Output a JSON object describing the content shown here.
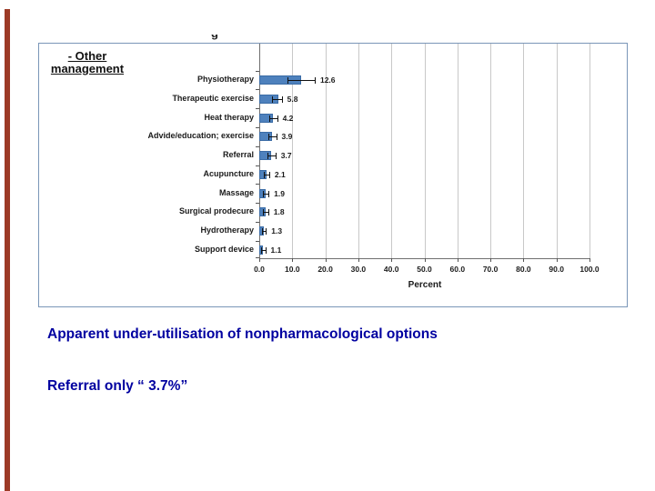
{
  "slide": {
    "accent_bar_color": "#9c3a26",
    "background": "#ffffff"
  },
  "chart": {
    "cropped_title_fragment": "g",
    "side_label": {
      "line1": "- Other",
      "line2": "management"
    },
    "border_color": "#7a96b8",
    "bar_color": "#4e81bd",
    "gridline_color": "#c8c8c8"
  },
  "chart_data": {
    "type": "bar",
    "orientation": "horizontal",
    "title": "",
    "xlabel": "Percent",
    "xlim": [
      0,
      100
    ],
    "x_ticks": [
      "0.0",
      "10.0",
      "20.0",
      "30.0",
      "40.0",
      "50.0",
      "60.0",
      "70.0",
      "80.0",
      "90.0",
      "100.0"
    ],
    "grid": true,
    "value_labels_shown": true,
    "categories": [
      "Physiotherapy",
      "Therapeutic exercise",
      "Heat therapy",
      "Advide/education; exercise",
      "Referral",
      "Acupuncture",
      "Massage",
      "Surgical prodecure",
      "Hydrotherapy",
      "Support device"
    ],
    "values": [
      12.6,
      5.8,
      4.2,
      3.9,
      3.7,
      2.1,
      1.9,
      1.8,
      1.3,
      1.1
    ],
    "error_low": [
      8.5,
      3.9,
      3.0,
      2.8,
      2.6,
      1.3,
      1.2,
      1.1,
      0.7,
      0.5
    ],
    "error_high": [
      16.8,
      6.8,
      5.4,
      5.1,
      4.9,
      3.0,
      2.8,
      2.7,
      2.0,
      1.8
    ]
  },
  "caption": {
    "line1": "Apparent under-utilisation of nonpharmacological options",
    "line2": "Referral only “ 3.7%”",
    "color": "#0000a0"
  }
}
